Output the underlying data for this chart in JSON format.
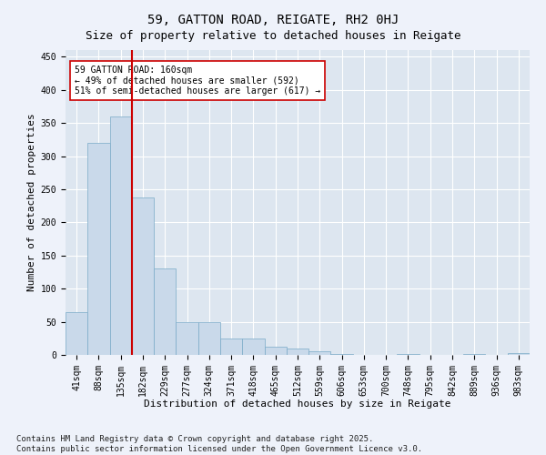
{
  "title": "59, GATTON ROAD, REIGATE, RH2 0HJ",
  "subtitle": "Size of property relative to detached houses in Reigate",
  "xlabel": "Distribution of detached houses by size in Reigate",
  "ylabel": "Number of detached properties",
  "bar_labels": [
    "41sqm",
    "88sqm",
    "135sqm",
    "182sqm",
    "229sqm",
    "277sqm",
    "324sqm",
    "371sqm",
    "418sqm",
    "465sqm",
    "512sqm",
    "559sqm",
    "606sqm",
    "653sqm",
    "700sqm",
    "748sqm",
    "795sqm",
    "842sqm",
    "889sqm",
    "936sqm",
    "983sqm"
  ],
  "bar_values": [
    65,
    320,
    360,
    238,
    130,
    50,
    50,
    25,
    25,
    13,
    9,
    5,
    1,
    0,
    0,
    1,
    0,
    0,
    1,
    0,
    3
  ],
  "bar_color": "#c9d9ea",
  "bar_edge_color": "#7aaac8",
  "vline_x": 2.5,
  "vline_color": "#cc0000",
  "ylim": [
    0,
    460
  ],
  "yticks": [
    0,
    50,
    100,
    150,
    200,
    250,
    300,
    350,
    400,
    450
  ],
  "annotation_text": "59 GATTON ROAD: 160sqm\n← 49% of detached houses are smaller (592)\n51% of semi-detached houses are larger (617) →",
  "annotation_box_color": "#cc0000",
  "footnote": "Contains HM Land Registry data © Crown copyright and database right 2025.\nContains public sector information licensed under the Open Government Licence v3.0.",
  "fig_bg_color": "#eef2fa",
  "plot_bg_color": "#dde6f0",
  "grid_color": "#ffffff",
  "title_fontsize": 10,
  "subtitle_fontsize": 9,
  "label_fontsize": 8,
  "tick_fontsize": 7,
  "annotation_fontsize": 7,
  "footnote_fontsize": 6.5
}
